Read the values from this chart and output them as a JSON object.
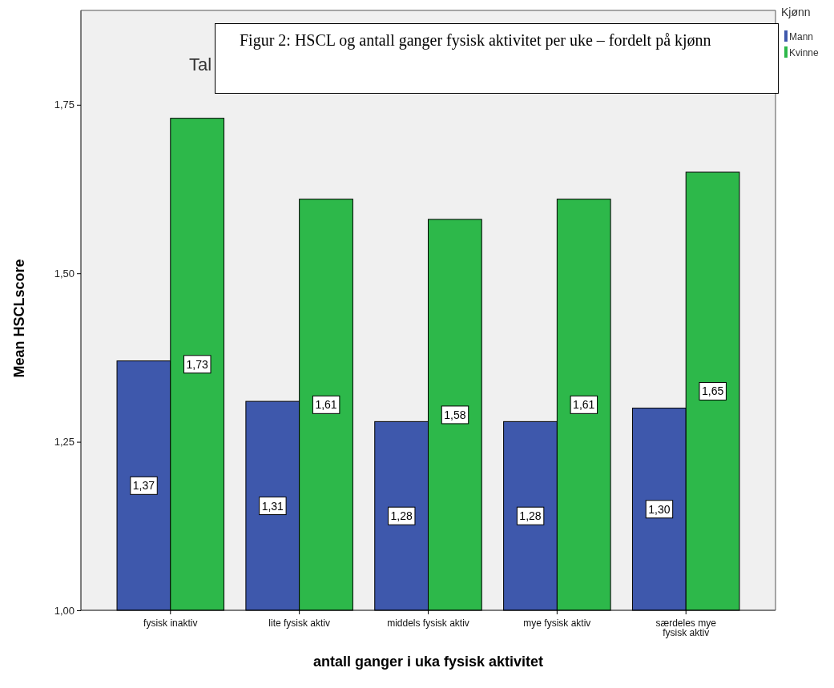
{
  "chart_data": {
    "type": "bar",
    "title": "Figur 2: HSCL og antall ganger fysisk aktivitet per uke – fordelt på kjønn",
    "annotations": [
      "Tal"
    ],
    "xlabel": "antall ganger i uka fysisk aktivitet",
    "ylabel": "Mean HSCLscore",
    "legend_title": "Kjønn",
    "categories": [
      "fysisk inaktiv",
      "lite fysisk aktiv",
      "middels fysisk aktiv",
      "mye fysisk aktiv",
      "særdeles mye fysisk aktiv"
    ],
    "series": [
      {
        "name": "Mann",
        "color": "#3e58ac",
        "values": [
          1.37,
          1.31,
          1.28,
          1.28,
          1.3
        ],
        "value_labels": [
          "1,37",
          "1,31",
          "1,28",
          "1,28",
          "1,30"
        ]
      },
      {
        "name": "Kvinne",
        "color": "#2db84a",
        "values": [
          1.73,
          1.61,
          1.58,
          1.61,
          1.65
        ],
        "value_labels": [
          "1,73",
          "1,61",
          "1,58",
          "1,61",
          "1,65"
        ]
      }
    ],
    "ylim": [
      1,
      1.89
    ],
    "yticks": [
      {
        "value": 1,
        "label": "1,00"
      },
      {
        "value": 1.25,
        "label": "1,25"
      },
      {
        "value": 1.5,
        "label": "1,50"
      },
      {
        "value": 1.75,
        "label": "1,75"
      }
    ],
    "grid": false,
    "legend": "top right"
  }
}
